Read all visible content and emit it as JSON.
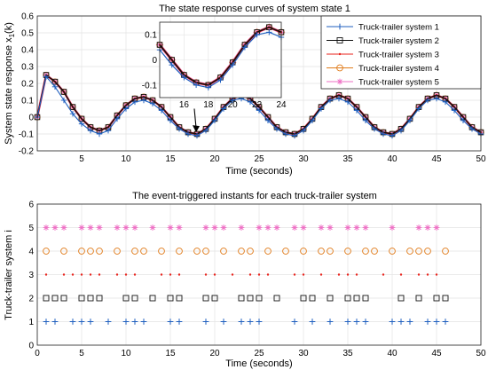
{
  "chart_data": [
    {
      "type": "line",
      "title": "The state response curves of system state 1",
      "xlabel": "Time (seconds)",
      "ylabel": "System state response x",
      "ylabel_sub": "1",
      "ylabel_suffix": "(k)",
      "xlim": [
        0,
        50
      ],
      "ylim": [
        -0.2,
        0.6
      ],
      "xticks": [
        5,
        10,
        15,
        20,
        25,
        30,
        35,
        40,
        45,
        50
      ],
      "yticks": [
        -0.2,
        -0.1,
        0,
        0.1,
        0.2,
        0.3,
        0.4,
        0.5,
        0.6
      ],
      "ytick_labels": [
        "-0.2",
        "-0.1",
        "0",
        "0.1",
        "0.2",
        "0.3",
        "0.4",
        "0.5",
        "0.6"
      ],
      "grid": true,
      "legend_position": "top-right",
      "x": [
        0,
        1,
        2,
        3,
        4,
        5,
        6,
        7,
        8,
        9,
        10,
        11,
        12,
        13,
        14,
        15,
        16,
        17,
        18,
        19,
        20,
        21,
        22,
        23,
        24,
        25,
        26,
        27,
        28,
        29,
        30,
        31,
        32,
        33,
        34,
        35,
        36,
        37,
        38,
        39,
        40,
        41,
        42,
        43,
        44,
        45,
        46,
        47,
        48,
        49,
        50
      ],
      "series": [
        {
          "name": "Truck-trailer system 1",
          "color": "#1f5fbf",
          "marker": "plus",
          "values": [
            0,
            0.24,
            0.18,
            0.1,
            0.02,
            -0.04,
            -0.08,
            -0.1,
            -0.08,
            -0.01,
            0.05,
            0.09,
            0.1,
            0.08,
            0.04,
            -0.02,
            -0.07,
            -0.1,
            -0.11,
            -0.08,
            -0.02,
            0.05,
            0.1,
            0.11,
            0.09,
            0.04,
            -0.02,
            -0.07,
            -0.1,
            -0.11,
            -0.08,
            -0.02,
            0.05,
            0.1,
            0.11,
            0.09,
            0.04,
            -0.02,
            -0.07,
            -0.1,
            -0.11,
            -0.08,
            -0.02,
            0.05,
            0.1,
            0.11,
            0.09,
            0.04,
            -0.02,
            -0.07,
            -0.1
          ]
        },
        {
          "name": "Truck-trailer system 2",
          "color": "#111111",
          "marker": "square",
          "values": [
            0,
            0.25,
            0.21,
            0.15,
            0.06,
            -0.01,
            -0.06,
            -0.08,
            -0.06,
            0.01,
            0.07,
            0.11,
            0.12,
            0.1,
            0.06,
            0,
            -0.06,
            -0.09,
            -0.1,
            -0.07,
            -0.01,
            0.06,
            0.11,
            0.13,
            0.11,
            0.06,
            0,
            -0.06,
            -0.09,
            -0.1,
            -0.07,
            -0.01,
            0.06,
            0.11,
            0.13,
            0.11,
            0.06,
            0,
            -0.06,
            -0.09,
            -0.1,
            -0.07,
            -0.01,
            0.06,
            0.11,
            0.13,
            0.11,
            0.06,
            0,
            -0.06,
            -0.09
          ]
        },
        {
          "name": "Truck-trailer system 3",
          "color": "#e8221b",
          "marker": "dot",
          "values": [
            0,
            0.25,
            0.21,
            0.15,
            0.06,
            -0.01,
            -0.06,
            -0.08,
            -0.06,
            0.01,
            0.07,
            0.11,
            0.12,
            0.1,
            0.06,
            0,
            -0.06,
            -0.09,
            -0.1,
            -0.07,
            -0.01,
            0.06,
            0.11,
            0.13,
            0.11,
            0.06,
            0,
            -0.06,
            -0.09,
            -0.1,
            -0.07,
            -0.01,
            0.06,
            0.11,
            0.13,
            0.11,
            0.06,
            0,
            -0.06,
            -0.09,
            -0.1,
            -0.07,
            -0.01,
            0.06,
            0.11,
            0.13,
            0.11,
            0.06,
            0,
            -0.06,
            -0.09
          ]
        },
        {
          "name": "Truck-trailer system 4",
          "color": "#e07b1a",
          "marker": "circle",
          "values": [
            0,
            0.25,
            0.21,
            0.15,
            0.06,
            -0.01,
            -0.06,
            -0.08,
            -0.06,
            0.01,
            0.07,
            0.11,
            0.12,
            0.1,
            0.06,
            0,
            -0.06,
            -0.09,
            -0.1,
            -0.07,
            -0.01,
            0.06,
            0.11,
            0.13,
            0.11,
            0.06,
            0,
            -0.06,
            -0.09,
            -0.1,
            -0.07,
            -0.01,
            0.06,
            0.11,
            0.13,
            0.11,
            0.06,
            0,
            -0.06,
            -0.09,
            -0.1,
            -0.07,
            -0.01,
            0.06,
            0.11,
            0.13,
            0.11,
            0.06,
            0,
            -0.06,
            -0.09
          ]
        },
        {
          "name": "Truck-trailer system 5",
          "color": "#ee6fc4",
          "marker": "asterisk",
          "values": [
            0,
            0.25,
            0.21,
            0.15,
            0.06,
            -0.01,
            -0.06,
            -0.08,
            -0.06,
            0.01,
            0.07,
            0.11,
            0.12,
            0.1,
            0.06,
            0,
            -0.06,
            -0.09,
            -0.1,
            -0.07,
            -0.01,
            0.06,
            0.11,
            0.13,
            0.11,
            0.06,
            0,
            -0.06,
            -0.09,
            -0.1,
            -0.07,
            -0.01,
            0.06,
            0.11,
            0.13,
            0.11,
            0.06,
            0,
            -0.06,
            -0.09,
            -0.1,
            -0.07,
            -0.01,
            0.06,
            0.11,
            0.13,
            0.11,
            0.06,
            0,
            -0.06,
            -0.09
          ]
        }
      ],
      "annotation": {
        "type": "arrow",
        "from": [
          18,
          0.05
        ],
        "to": [
          18,
          -0.09
        ]
      },
      "inset": {
        "xlim": [
          14,
          24
        ],
        "ylim": [
          -0.15,
          0.15
        ],
        "xticks": [
          16,
          18,
          20,
          22,
          24
        ],
        "yticks": [
          -0.1,
          0,
          0.1
        ],
        "ytick_labels": [
          "-0.1",
          "0",
          "0.1"
        ],
        "x": [
          14,
          15,
          16,
          17,
          18,
          19,
          20,
          21,
          22,
          23,
          24
        ],
        "series_values": [
          [
            0.04,
            -0.02,
            -0.07,
            -0.1,
            -0.11,
            -0.08,
            -0.02,
            0.05,
            0.1,
            0.11,
            0.09
          ],
          [
            0.06,
            0,
            -0.06,
            -0.09,
            -0.1,
            -0.07,
            -0.01,
            0.06,
            0.11,
            0.13,
            0.11
          ],
          [
            0.06,
            0,
            -0.06,
            -0.09,
            -0.1,
            -0.07,
            -0.01,
            0.06,
            0.11,
            0.13,
            0.11
          ],
          [
            0.06,
            0,
            -0.06,
            -0.09,
            -0.1,
            -0.07,
            -0.01,
            0.06,
            0.11,
            0.13,
            0.11
          ],
          [
            0.06,
            0,
            -0.06,
            -0.09,
            -0.1,
            -0.07,
            -0.01,
            0.06,
            0.11,
            0.13,
            0.11
          ]
        ]
      }
    },
    {
      "type": "scatter",
      "title": "The event-triggered instants for each truck-trailer system",
      "xlabel": "Time (seconds)",
      "ylabel": "Truck-trailer system i",
      "xlim": [
        0,
        50
      ],
      "ylim": [
        0,
        6
      ],
      "xticks": [
        0,
        5,
        10,
        15,
        20,
        25,
        30,
        35,
        40,
        45,
        50
      ],
      "yticks": [
        0,
        1,
        2,
        3,
        4,
        5,
        6
      ],
      "grid": true,
      "series": [
        {
          "name": "Truck-trailer system 1",
          "y": 1,
          "color": "#1f5fbf",
          "marker": "plus",
          "x": [
            1,
            2,
            4,
            5,
            6,
            8,
            10,
            11,
            12,
            15,
            16,
            19,
            21,
            23,
            24,
            25,
            29,
            31,
            33,
            35,
            36,
            37,
            40,
            41,
            42,
            44,
            45,
            46
          ]
        },
        {
          "name": "Truck-trailer system 2",
          "y": 2,
          "color": "#111111",
          "marker": "square",
          "x": [
            1,
            2,
            3,
            5,
            6,
            7,
            10,
            11,
            13,
            15,
            16,
            19,
            20,
            23,
            24,
            25,
            27,
            30,
            31,
            33,
            35,
            36,
            37,
            41,
            43,
            45,
            46
          ]
        },
        {
          "name": "Truck-trailer system 3",
          "y": 3,
          "color": "#e8221b",
          "marker": "dot",
          "x": [
            1,
            3,
            4,
            5,
            6,
            7,
            9,
            10,
            11,
            14,
            15,
            16,
            19,
            20,
            22,
            24,
            25,
            26,
            29,
            30,
            32,
            34,
            35,
            36,
            39,
            41,
            43,
            44,
            45
          ]
        },
        {
          "name": "Truck-trailer system 4",
          "y": 4,
          "color": "#e07b1a",
          "marker": "circle",
          "x": [
            1,
            3,
            5,
            6,
            7,
            9,
            11,
            12,
            14,
            16,
            18,
            19,
            21,
            23,
            24,
            26,
            28,
            30,
            32,
            33,
            35,
            37,
            38,
            40,
            42,
            43,
            44,
            46
          ]
        },
        {
          "name": "Truck-trailer system 5",
          "y": 5,
          "color": "#ee6fc4",
          "marker": "asterisk",
          "x": [
            1,
            2,
            3,
            5,
            6,
            7,
            9,
            10,
            11,
            13,
            15,
            16,
            19,
            20,
            21,
            23,
            25,
            26,
            27,
            29,
            30,
            32,
            33,
            35,
            36,
            37,
            40,
            43,
            44,
            45
          ]
        }
      ]
    }
  ]
}
